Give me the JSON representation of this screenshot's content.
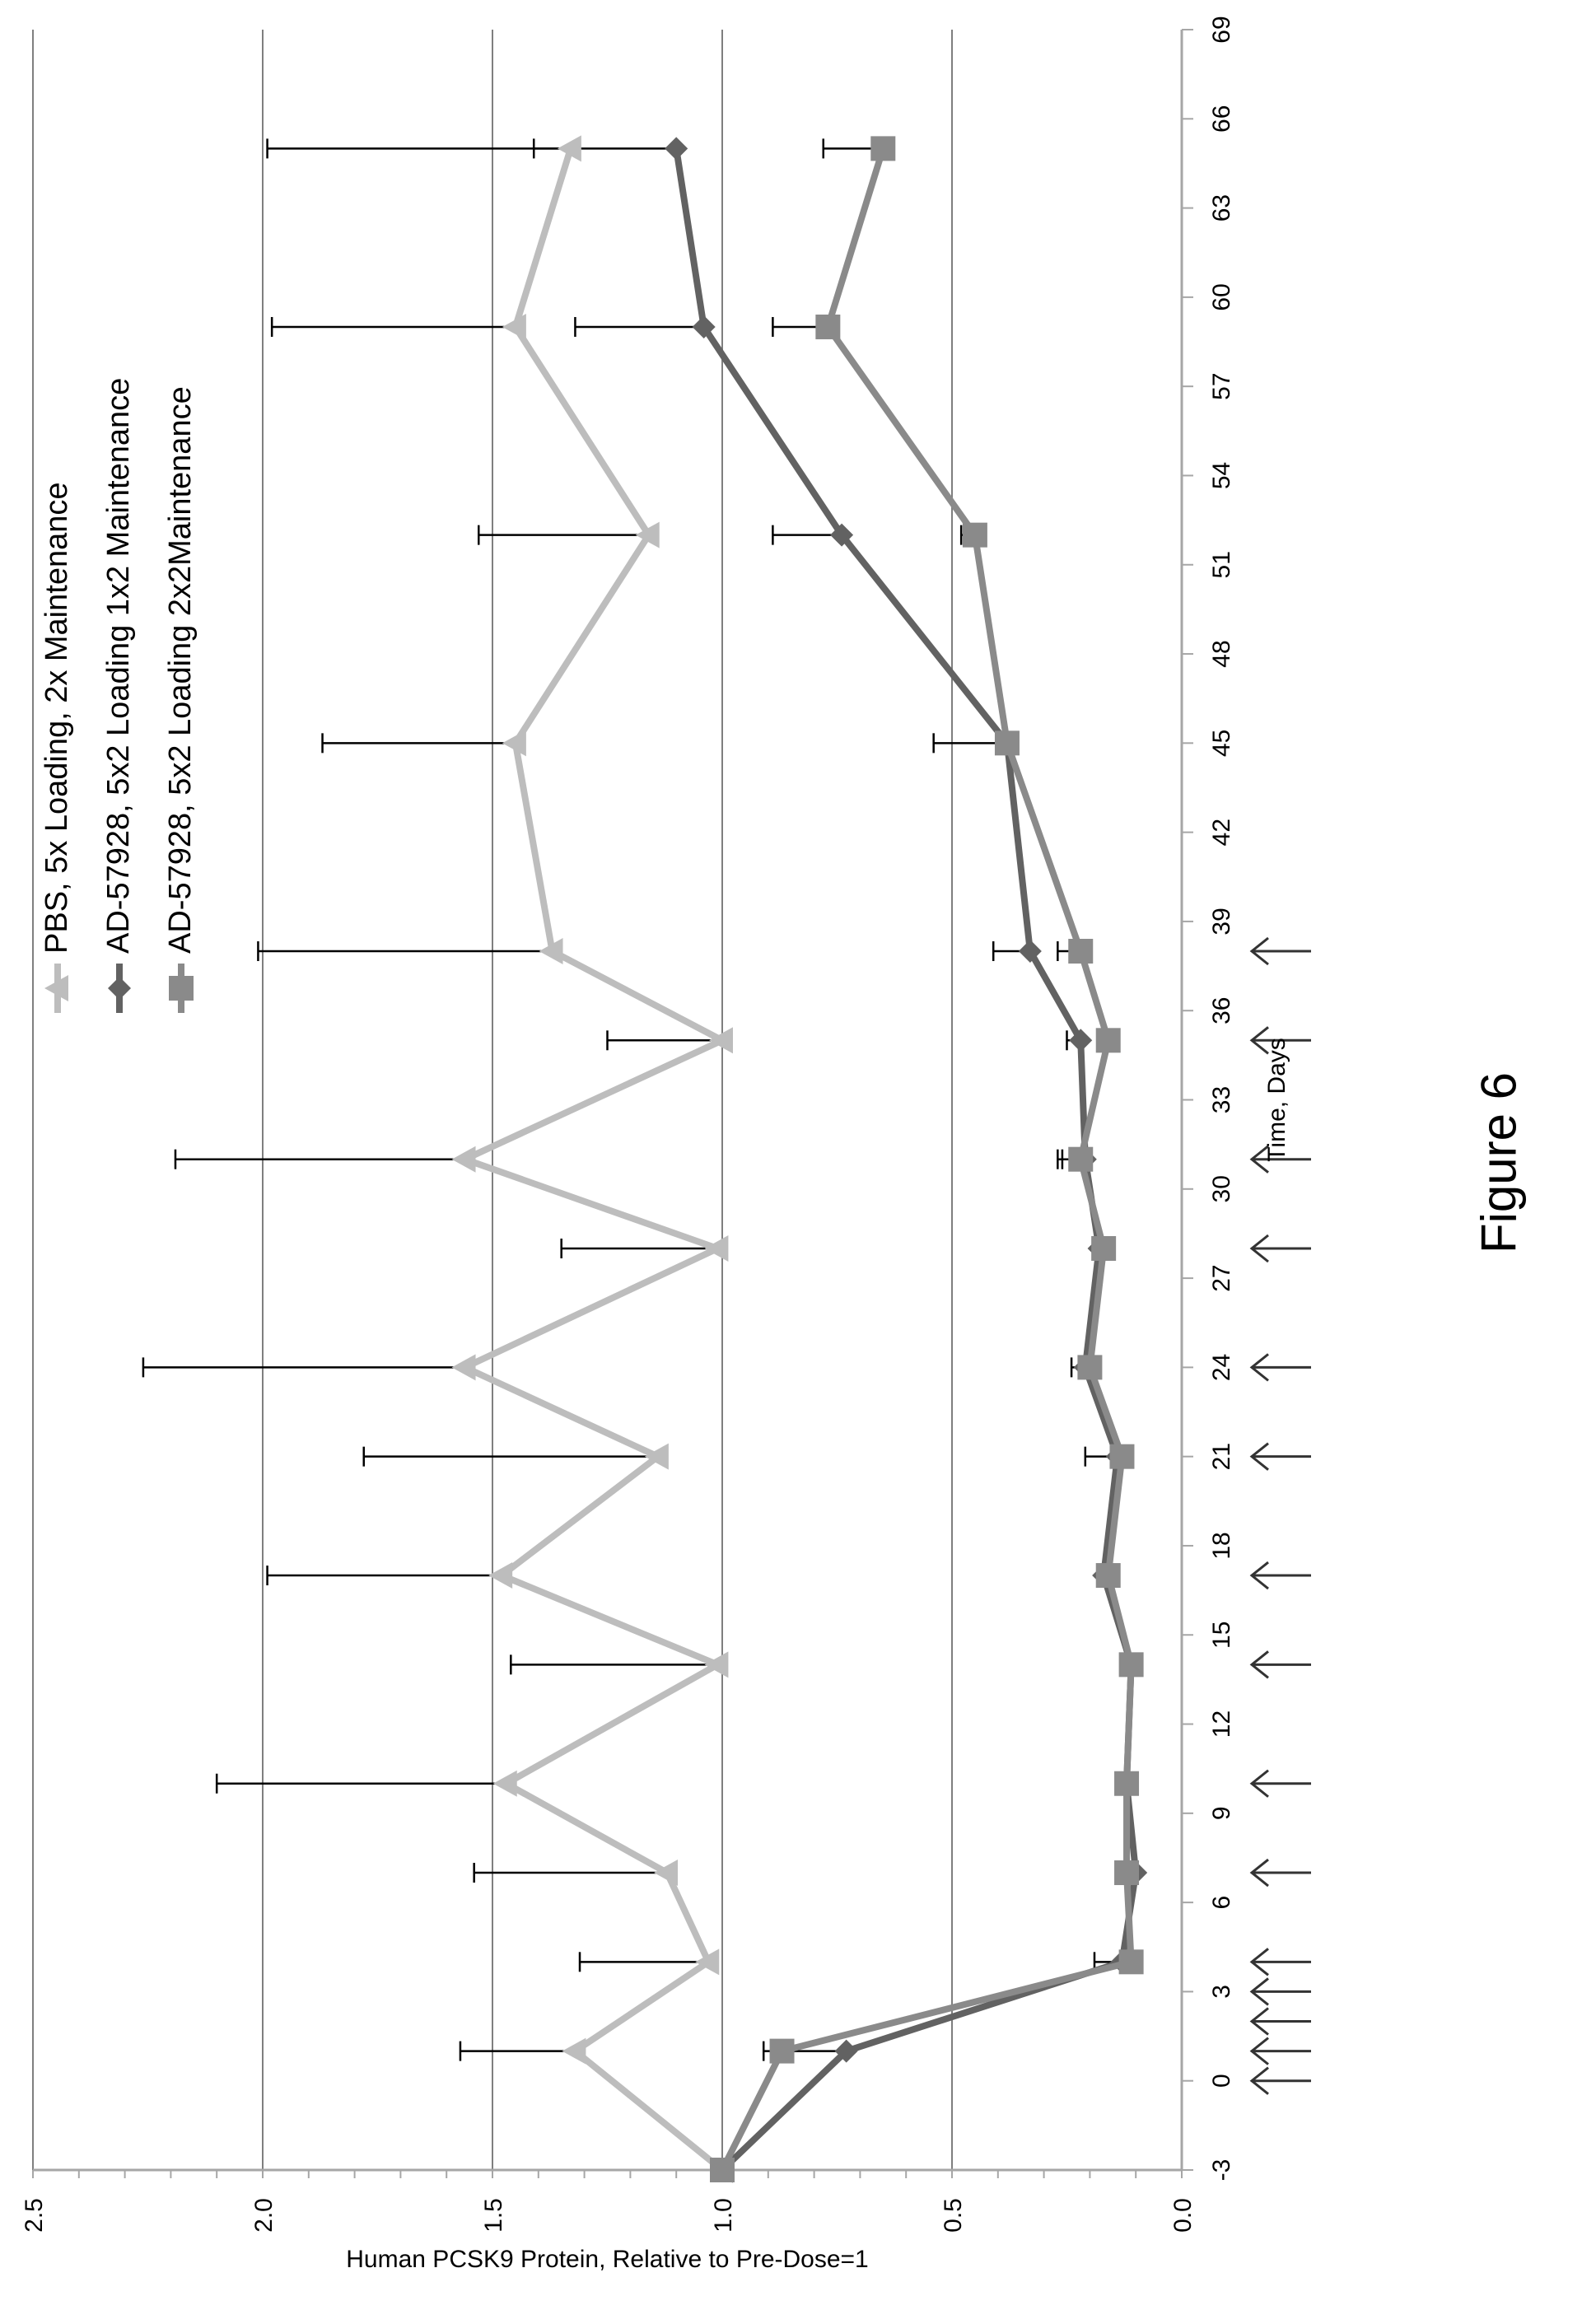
{
  "figure_caption": "Figure 6",
  "colors": {
    "pbs": "#bdbdbd",
    "loading_1x2": "#626262",
    "loading_2x2": "#8a8a8a",
    "error_bar": "#000000",
    "grid": "#7f7f7f",
    "axis": "#a6a6a6"
  },
  "chart_data": {
    "type": "line",
    "title": "",
    "xlabel": "Time, Days",
    "ylabel": "Human PCSK9 Protein, Relative to Pre-Dose=1",
    "xlim": [
      -3,
      69
    ],
    "ylim": [
      0,
      2.5
    ],
    "xticks": [
      -3,
      0,
      3,
      6,
      9,
      12,
      15,
      18,
      21,
      24,
      27,
      30,
      33,
      36,
      39,
      42,
      45,
      48,
      51,
      54,
      57,
      60,
      63,
      66,
      69
    ],
    "yticks": [
      0.0,
      0.5,
      1.0,
      1.5,
      2.0,
      2.5
    ],
    "ytick_labels": [
      "0.0",
      "0.5",
      "1.0",
      "1.5",
      "2.0",
      "2.5"
    ],
    "grid": "horizontal major",
    "orientation": "rotated 90 degrees counter-clockwise",
    "legend_position": "top-right",
    "dosing_arrow_days": [
      0,
      1,
      2,
      3,
      4,
      7,
      10,
      14,
      17,
      21,
      24,
      28,
      31,
      35,
      38
    ],
    "series": [
      {
        "name": "PBS, 5x Loading,  2x Maintenance",
        "marker": "triangle",
        "color": "#bdbdbd",
        "x": [
          -3,
          1,
          4,
          7,
          10,
          14,
          17,
          21,
          24,
          28,
          31,
          35,
          38,
          45,
          52,
          59,
          65
        ],
        "y": [
          1.0,
          1.32,
          1.03,
          1.12,
          1.47,
          1.01,
          1.48,
          1.14,
          1.56,
          1.01,
          1.56,
          1.0,
          1.37,
          1.45,
          1.16,
          1.45,
          1.33
        ],
        "error_upper": [
          null,
          1.57,
          1.31,
          1.54,
          2.1,
          1.46,
          1.99,
          1.78,
          2.26,
          1.35,
          2.19,
          1.25,
          2.01,
          1.87,
          1.53,
          1.98,
          1.99
        ]
      },
      {
        "name": "AD-57928,  5x2 Loading 1x2 Maintenance",
        "marker": "diamond",
        "color": "#626262",
        "x": [
          -3,
          1,
          4,
          7,
          10,
          14,
          17,
          21,
          24,
          28,
          31,
          35,
          38,
          45,
          52,
          59,
          65
        ],
        "y": [
          1.0,
          0.73,
          0.13,
          0.1,
          0.12,
          0.11,
          0.17,
          0.14,
          0.21,
          0.18,
          0.21,
          0.22,
          0.33,
          0.38,
          0.74,
          1.04,
          1.1
        ],
        "error_upper": [
          null,
          0.89,
          0.19,
          null,
          0.14,
          null,
          null,
          0.21,
          0.24,
          null,
          0.27,
          0.25,
          0.41,
          0.54,
          0.89,
          1.32,
          1.41
        ]
      },
      {
        "name": "AD-57928,  5x2 Loading 2x2Maintenance",
        "marker": "square",
        "color": "#8a8a8a",
        "x": [
          -3,
          1,
          4,
          7,
          10,
          14,
          17,
          21,
          24,
          28,
          31,
          35,
          38,
          45,
          52,
          59,
          65
        ],
        "y": [
          1.0,
          0.87,
          0.11,
          0.12,
          0.12,
          0.11,
          0.16,
          0.13,
          0.2,
          0.17,
          0.22,
          0.16,
          0.22,
          0.38,
          0.45,
          0.77,
          0.65
        ],
        "error_upper": [
          null,
          0.91,
          null,
          null,
          null,
          null,
          null,
          null,
          null,
          null,
          0.26,
          null,
          0.27,
          null,
          0.48,
          0.89,
          0.78
        ]
      }
    ]
  }
}
